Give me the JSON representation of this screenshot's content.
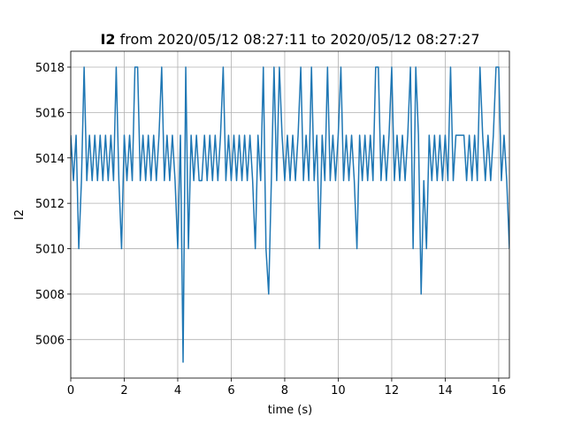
{
  "chart_data": {
    "type": "line",
    "title_signal": "I2",
    "title": "from 2020/05/12 08:27:11 to 2020/05/12 08:27:27",
    "xlabel": "time (s)",
    "ylabel": "I2",
    "color": "#1f77b4",
    "grid": true,
    "xlim": [
      0,
      16.4
    ],
    "ylim": [
      5004.3,
      5018.7
    ],
    "xticks": [
      0,
      2,
      4,
      6,
      8,
      10,
      12,
      14,
      16
    ],
    "yticks": [
      5006,
      5008,
      5010,
      5012,
      5014,
      5016,
      5018
    ],
    "x": [
      0,
      0.1,
      0.2,
      0.3,
      0.4,
      0.5,
      0.6,
      0.7,
      0.8,
      0.9,
      1,
      1.1,
      1.2,
      1.3,
      1.4,
      1.5,
      1.6,
      1.7,
      1.8,
      1.9,
      2,
      2.1,
      2.2,
      2.3,
      2.4,
      2.5,
      2.6,
      2.7,
      2.8,
      2.9,
      3,
      3.1,
      3.2,
      3.3,
      3.4,
      3.5,
      3.6,
      3.7,
      3.8,
      3.9,
      4,
      4.1,
      4.2,
      4.3,
      4.4,
      4.5,
      4.6,
      4.7,
      4.8,
      4.9,
      5,
      5.1,
      5.2,
      5.3,
      5.4,
      5.5,
      5.6,
      5.7,
      5.8,
      5.9,
      6,
      6.1,
      6.2,
      6.3,
      6.4,
      6.5,
      6.6,
      6.7,
      6.8,
      6.9,
      7,
      7.1,
      7.2,
      7.3,
      7.4,
      7.5,
      7.6,
      7.7,
      7.8,
      7.9,
      8,
      8.1,
      8.2,
      8.3,
      8.4,
      8.5,
      8.6,
      8.7,
      8.8,
      8.9,
      9,
      9.1,
      9.2,
      9.3,
      9.4,
      9.5,
      9.6,
      9.7,
      9.8,
      9.9,
      10,
      10.1,
      10.2,
      10.3,
      10.4,
      10.5,
      10.6,
      10.7,
      10.8,
      10.9,
      11,
      11.1,
      11.2,
      11.3,
      11.4,
      11.5,
      11.6,
      11.7,
      11.8,
      11.9,
      12,
      12.1,
      12.2,
      12.3,
      12.4,
      12.5,
      12.6,
      12.7,
      12.8,
      12.9,
      13,
      13.1,
      13.2,
      13.3,
      13.4,
      13.5,
      13.6,
      13.7,
      13.8,
      13.9,
      14,
      14.1,
      14.2,
      14.3,
      14.4,
      14.5,
      14.6,
      14.7,
      14.8,
      14.9,
      15,
      15.1,
      15.2,
      15.3,
      15.4,
      15.5,
      15.6,
      15.7,
      15.8,
      15.9,
      16,
      16.1,
      16.2,
      16.3,
      16.4
    ],
    "values": [
      5015,
      5013,
      5015,
      5010,
      5013,
      5018,
      5013,
      5015,
      5013,
      5015,
      5013,
      5015,
      5013,
      5015,
      5013,
      5015,
      5013,
      5018,
      5013,
      5010,
      5015,
      5013,
      5015,
      5013,
      5018,
      5018,
      5013,
      5015,
      5013,
      5015,
      5013,
      5015,
      5013,
      5015,
      5018,
      5013,
      5015,
      5013,
      5015,
      5013,
      5010,
      5015,
      5005,
      5018,
      5010,
      5015,
      5013,
      5015,
      5013,
      5013,
      5015,
      5013,
      5015,
      5013,
      5015,
      5013,
      5015,
      5018,
      5013,
      5015,
      5013,
      5015,
      5013,
      5015,
      5013,
      5015,
      5013,
      5015,
      5013,
      5010,
      5015,
      5013,
      5018,
      5010,
      5008,
      5013,
      5018,
      5013,
      5018,
      5015,
      5013,
      5015,
      5013,
      5015,
      5013,
      5015,
      5018,
      5013,
      5015,
      5013,
      5018,
      5013,
      5015,
      5010,
      5015,
      5013,
      5018,
      5013,
      5015,
      5013,
      5015,
      5018,
      5013,
      5015,
      5013,
      5015,
      5013,
      5010,
      5015,
      5013,
      5015,
      5013,
      5015,
      5013,
      5018,
      5018,
      5013,
      5015,
      5013,
      5015,
      5018,
      5013,
      5015,
      5013,
      5015,
      5013,
      5015,
      5018,
      5010,
      5018,
      5015,
      5008,
      5013,
      5010,
      5015,
      5013,
      5015,
      5013,
      5015,
      5013,
      5015,
      5013,
      5018,
      5013,
      5015,
      5015,
      5015,
      5015,
      5013,
      5015,
      5013,
      5015,
      5013,
      5018,
      5015,
      5013,
      5015,
      5013,
      5015,
      5018,
      5018,
      5013,
      5015,
      5013,
      5010
    ]
  }
}
